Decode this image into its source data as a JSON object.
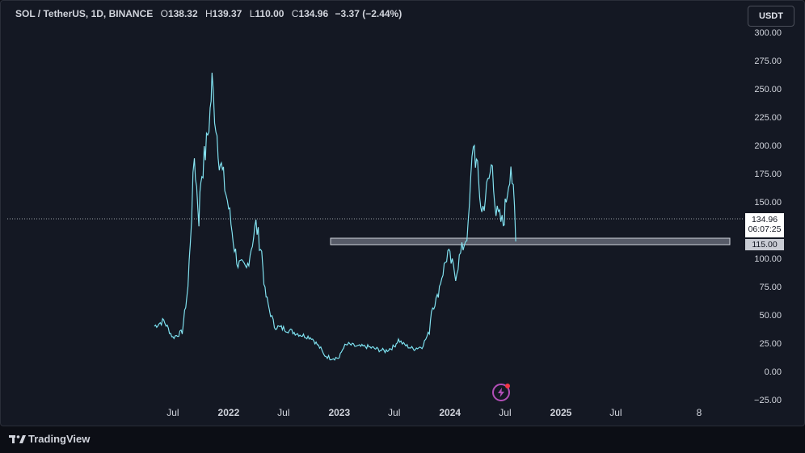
{
  "legend": {
    "symbol": "SOL / TetherUS, 1D, BINANCE",
    "open_label": "O",
    "open": "138.32",
    "high_label": "H",
    "high": "139.37",
    "low_label": "L",
    "low": "110.00",
    "close_label": "C",
    "close": "134.96",
    "change": "−3.37 (−2.44%)"
  },
  "currency_button": "USDT",
  "last_price": {
    "price": "134.96",
    "countdown": "06:07:25"
  },
  "level_line": {
    "price": "115.00"
  },
  "footer": {
    "brand": "TradingView"
  },
  "colors": {
    "background": "#141823",
    "line": "#5bd6e8",
    "line_highlight": "#e6f7fb",
    "level_band": "#6e7280",
    "grid_text": "#d1d4dc",
    "flash_icon": "#b34fb8"
  },
  "icons": [
    "tradingview-logo-icon",
    "flash-icon"
  ],
  "chart_data": {
    "type": "line",
    "title": "SOL / TetherUS, 1D, BINANCE",
    "x_tick_labels": [
      "Jul",
      "2022",
      "Jul",
      "2023",
      "Jul",
      "2024",
      "Jul",
      "2025",
      "Jul",
      "8"
    ],
    "y_tick_labels": [
      "300.00",
      "275.00",
      "250.00",
      "225.00",
      "200.00",
      "175.00",
      "150.00",
      "125.00",
      "100.00",
      "75.00",
      "50.00",
      "25.00",
      "0.00",
      "−25.00"
    ],
    "ylim": [
      -25,
      300
    ],
    "horizontal_level": 115.0,
    "last_price": 134.96,
    "series": [
      {
        "values_unit": "USDT",
        "x": [
          "2021-05",
          "2021-06",
          "2021-07",
          "2021-08",
          "2021-08-20",
          "2021-09",
          "2021-09-10",
          "2021-09-25",
          "2021-10",
          "2021-10-20",
          "2021-11",
          "2021-11-07",
          "2021-11-20",
          "2021-12",
          "2021-12-15",
          "2022-01",
          "2022-01-20",
          "2022-02",
          "2022-03",
          "2022-04",
          "2022-04-20",
          "2022-05",
          "2022-05-15",
          "2022-06",
          "2022-07",
          "2022-08",
          "2022-09",
          "2022-10",
          "2022-11",
          "2022-11-10",
          "2022-12",
          "2023-01",
          "2023-01-15",
          "2023-02",
          "2023-03",
          "2023-04",
          "2023-05",
          "2023-06",
          "2023-07",
          "2023-07-15",
          "2023-08",
          "2023-09",
          "2023-10",
          "2023-10-25",
          "2023-11",
          "2023-11-20",
          "2023-12",
          "2023-12-25",
          "2024-01",
          "2024-01-20",
          "2024-02",
          "2024-03",
          "2024-03-18",
          "2024-04",
          "2024-04-15",
          "2024-05",
          "2024-05-20",
          "2024-06",
          "2024-06-25",
          "2024-07",
          "2024-07-20",
          "2024-08",
          "2024-08-05"
        ],
        "values": [
          40,
          45,
          30,
          35,
          75,
          140,
          190,
          135,
          170,
          200,
          230,
          255,
          220,
          190,
          170,
          145,
          110,
          95,
          90,
          130,
          105,
          70,
          55,
          40,
          38,
          35,
          32,
          30,
          20,
          15,
          12,
          12,
          22,
          24,
          22,
          22,
          20,
          18,
          22,
          28,
          24,
          20,
          22,
          35,
          55,
          65,
          80,
          105,
          100,
          85,
          100,
          125,
          205,
          175,
          140,
          160,
          185,
          140,
          130,
          145,
          185,
          140,
          115
        ]
      }
    ]
  }
}
